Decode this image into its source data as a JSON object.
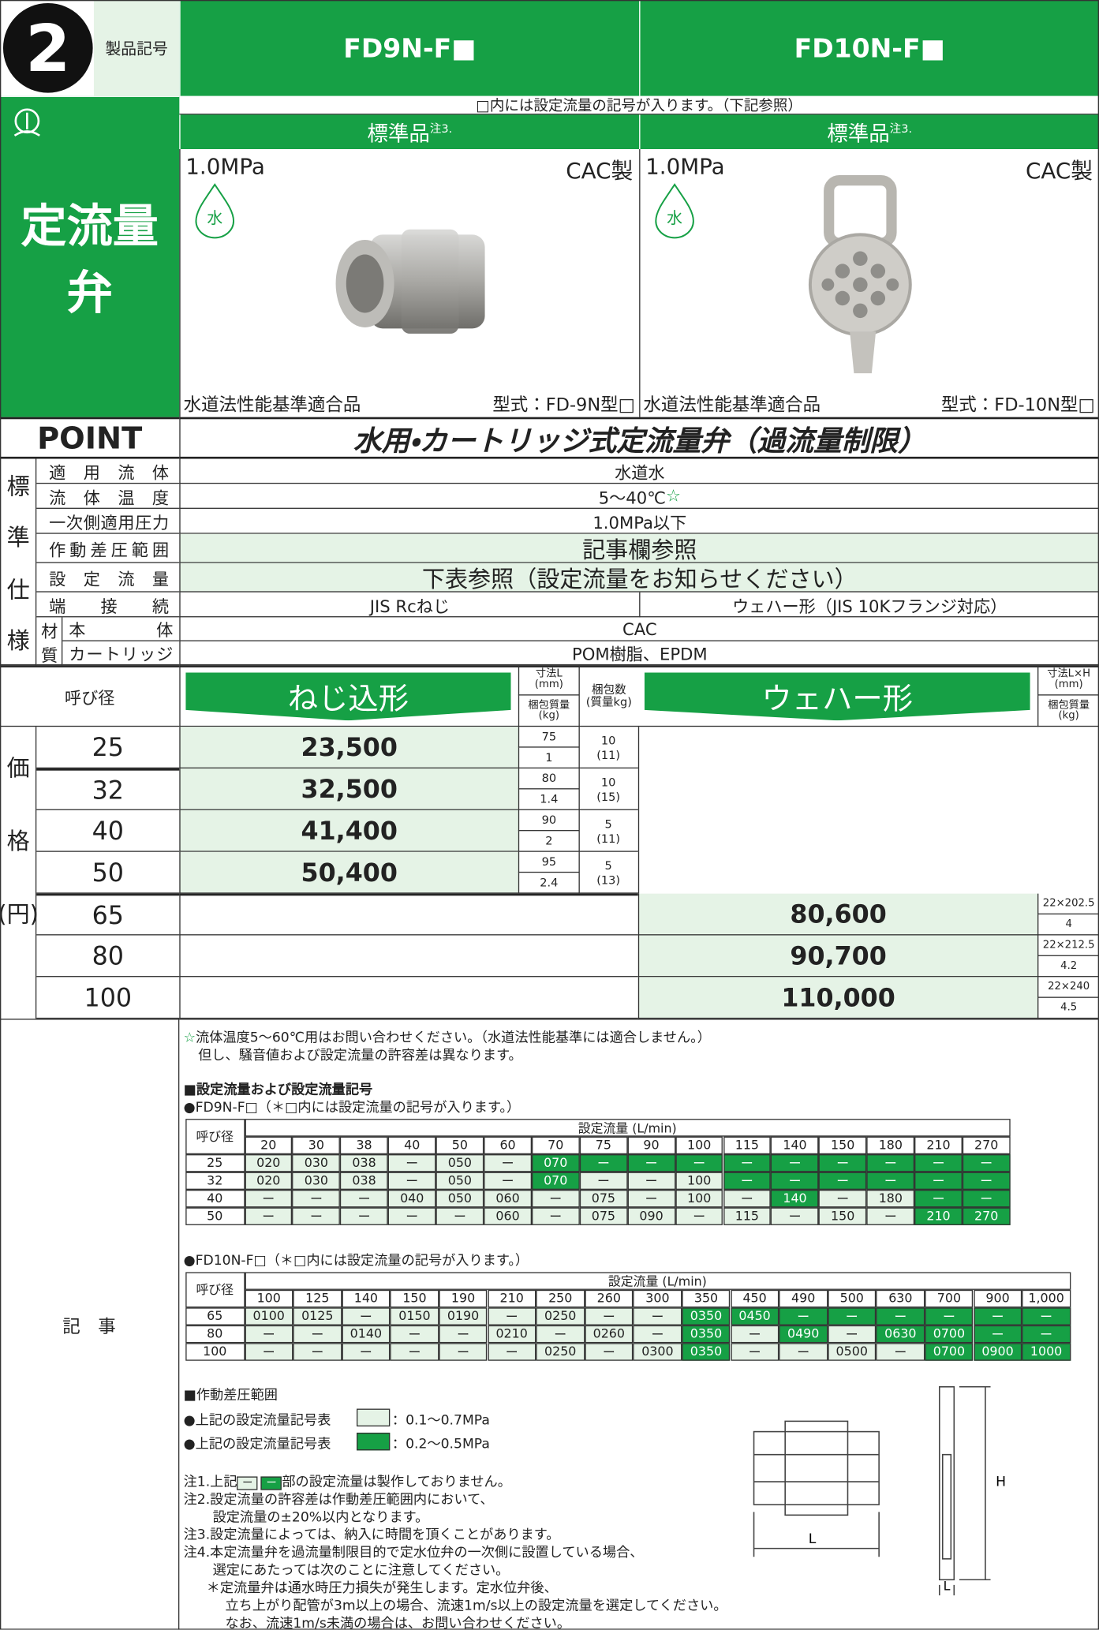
{
  "header": {
    "number": "2",
    "label": "製品記号",
    "products": [
      "FD9N-F■",
      "FD10N-F■"
    ]
  },
  "notice": "□内には設定流量の記号が入ります。（下記参照）",
  "standard": {
    "label": "標準品",
    "note": "注3."
  },
  "category": "定流量弁",
  "products": [
    {
      "pressure": "1.0MPa",
      "material": "CAC製",
      "badge": "水",
      "certification": "水道法性能基準適合品",
      "model": "型式：FD-9N型□"
    },
    {
      "pressure": "1.0MPa",
      "material": "CAC製",
      "badge": "水",
      "certification": "水道法性能基準適合品",
      "model": "型式：FD-10N型□"
    }
  ],
  "point": {
    "label": "POINT",
    "title": "水用・カートリッジ式定流量弁（過流量制限）"
  },
  "spec": {
    "group": [
      "標",
      "準",
      "仕",
      "様"
    ],
    "rows": [
      {
        "label": "適用流体",
        "value": "水道水"
      },
      {
        "label": "流体温度",
        "value": "5〜40℃",
        "mark": "☆"
      },
      {
        "label": "一次側適用圧力",
        "value": "1.0MPa以下"
      },
      {
        "label": "作動差圧範囲",
        "value": "記事欄参照"
      },
      {
        "label": "設定流量",
        "value": "下表参照（設定流量をお知らせください）"
      },
      {
        "label": "端接続",
        "values": [
          "JIS Rcねじ",
          "ウェハー形（JIS 10Kフランジ対応）"
        ]
      }
    ],
    "material": {
      "group": [
        "材",
        "質"
      ],
      "rows": [
        {
          "label": "本体",
          "value": "CAC"
        },
        {
          "label": "カートリッジ",
          "value": "POM樹脂、EPDM"
        }
      ]
    }
  },
  "price": {
    "group": [
      "価",
      "格",
      "(円)"
    ],
    "headers": {
      "size": "呼び径",
      "threaded": "ねじ込形",
      "dimension_l": "寸法L\n(mm)",
      "package_mass": "梱包質量\n(kg)",
      "package_count": "梱包数\n(質量kg)",
      "wafer": "ウェハー形",
      "dimension_lh": "寸法L×H\n(mm)",
      "wafer_package_mass": "梱包質量\n(kg)"
    },
    "threaded_rows": [
      {
        "size": "25",
        "price": "23,500",
        "l": "75",
        "mass": "1",
        "count": "10",
        "count_mass": "(11)"
      },
      {
        "size": "32",
        "price": "32,500",
        "l": "80",
        "mass": "1.4",
        "count": "10",
        "count_mass": "(15)"
      },
      {
        "size": "40",
        "price": "41,400",
        "l": "90",
        "mass": "2",
        "count": "5",
        "count_mass": "(11)"
      },
      {
        "size": "50",
        "price": "50,400",
        "l": "95",
        "mass": "2.4",
        "count": "5",
        "count_mass": "(13)"
      }
    ],
    "wafer_rows": [
      {
        "size": "65",
        "price": "80,600",
        "lh": "22×202.5",
        "mass": "4"
      },
      {
        "size": "80",
        "price": "90,700",
        "lh": "22×212.5",
        "mass": "4.2"
      },
      {
        "size": "100",
        "price": "110,000",
        "lh": "22×240",
        "mass": "4.5"
      }
    ]
  },
  "notes": {
    "label": "記　事",
    "star_note": {
      "mark": "☆",
      "lines": [
        "流体温度5〜60℃用はお問い合わせください。（水道法性能基準には適合しません。）",
        "但し、騒音値および設定流量の許容差は異なります。"
      ]
    },
    "flow_section": "■設定流量および設定流量記号",
    "tables": [
      {
        "caption": "●FD9N-F□（＊□内には設定流量の記号が入ります。）",
        "size_header": "呼び径",
        "flow_header": "設定流量 (L/min)",
        "columns": [
          "20",
          "30",
          "38",
          "40",
          "50",
          "60",
          "70",
          "75",
          "90",
          "100",
          "115",
          "140",
          "150",
          "180",
          "210",
          "270"
        ],
        "rows": [
          {
            "size": "25",
            "cells": [
              "020",
              "030",
              "038",
              "ー",
              "050",
              "ー",
              "070",
              "ー",
              "ー",
              "ー",
              "ー",
              "ー",
              "ー",
              "ー",
              "ー",
              "ー"
            ],
            "highlight": [
              6,
              7,
              8,
              9,
              10,
              11,
              12,
              13,
              14,
              15
            ]
          },
          {
            "size": "32",
            "cells": [
              "020",
              "030",
              "038",
              "ー",
              "050",
              "ー",
              "070",
              "ー",
              "ー",
              "100",
              "ー",
              "ー",
              "ー",
              "ー",
              "ー",
              "ー"
            ],
            "highlight": [
              6,
              10,
              11,
              12,
              13,
              14,
              15
            ]
          },
          {
            "size": "40",
            "cells": [
              "ー",
              "ー",
              "ー",
              "040",
              "050",
              "060",
              "ー",
              "075",
              "ー",
              "100",
              "ー",
              "140",
              "ー",
              "180",
              "ー",
              "ー"
            ],
            "highlight": [
              11,
              14,
              15
            ]
          },
          {
            "size": "50",
            "cells": [
              "ー",
              "ー",
              "ー",
              "ー",
              "ー",
              "060",
              "ー",
              "075",
              "090",
              "ー",
              "115",
              "ー",
              "150",
              "ー",
              "210",
              "270"
            ],
            "highlight": [
              14,
              15
            ]
          }
        ]
      },
      {
        "caption": "●FD10N-F□（＊□内には設定流量の記号が入ります。）",
        "size_header": "呼び径",
        "flow_header": "設定流量 (L/min)",
        "columns": [
          "100",
          "125",
          "140",
          "150",
          "190",
          "210",
          "250",
          "260",
          "300",
          "350",
          "450",
          "490",
          "500",
          "630",
          "700",
          "900",
          "1,000"
        ],
        "rows": [
          {
            "size": "65",
            "cells": [
              "0100",
              "0125",
              "ー",
              "0150",
              "0190",
              "ー",
              "0250",
              "ー",
              "ー",
              "0350",
              "0450",
              "ー",
              "ー",
              "ー",
              "ー",
              "ー",
              "ー"
            ],
            "highlight": [
              9,
              10,
              11,
              12,
              13,
              14,
              15,
              16
            ]
          },
          {
            "size": "80",
            "cells": [
              "ー",
              "ー",
              "0140",
              "ー",
              "ー",
              "0210",
              "ー",
              "0260",
              "ー",
              "0350",
              "ー",
              "0490",
              "ー",
              "0630",
              "0700",
              "ー",
              "ー"
            ],
            "highlight": [
              9,
              11,
              13,
              14,
              15,
              16
            ]
          },
          {
            "size": "100",
            "cells": [
              "ー",
              "ー",
              "ー",
              "ー",
              "ー",
              "ー",
              "0250",
              "ー",
              "0300",
              "0350",
              "ー",
              "ー",
              "0500",
              "ー",
              "0700",
              "0900",
              "1000"
            ],
            "highlight": [
              9,
              14,
              15,
              16
            ]
          }
        ]
      }
    ],
    "pressure": {
      "title": "■作動差圧範囲",
      "items": [
        {
          "label": "●上記の設定流量記号表",
          "range": "：0.1〜0.7MPa"
        },
        {
          "label": "●上記の設定流量記号表",
          "range": "：0.2〜0.5MPa"
        }
      ]
    },
    "note1": {
      "prefix": "注1.上記",
      "box": "ー",
      "suffix": "部の設定流量は製作しておりません。"
    },
    "lines": [
      "注2.設定流量の許容差は作動差圧範囲内において、",
      "設定流量の±20%以内となります。",
      "注3.設定流量によっては、納入に時間を頂くことがあります。",
      "注4.本定流量弁を過流量制限目的で定水位弁の一次側に設置している場合、",
      "選定にあたっては次のことに注意してください。",
      "＊定流量弁は通水時圧力損失が発生します。定水位弁後、",
      "立ち上がり配管が3m以上の場合、流速1m/s以上の設定流量を選定してください。",
      "なお、流速1m/s未満の場合は、お問い合わせください。"
    ]
  },
  "diagrams": {
    "union": "L",
    "wafer": [
      "H",
      "L"
    ]
  }
}
